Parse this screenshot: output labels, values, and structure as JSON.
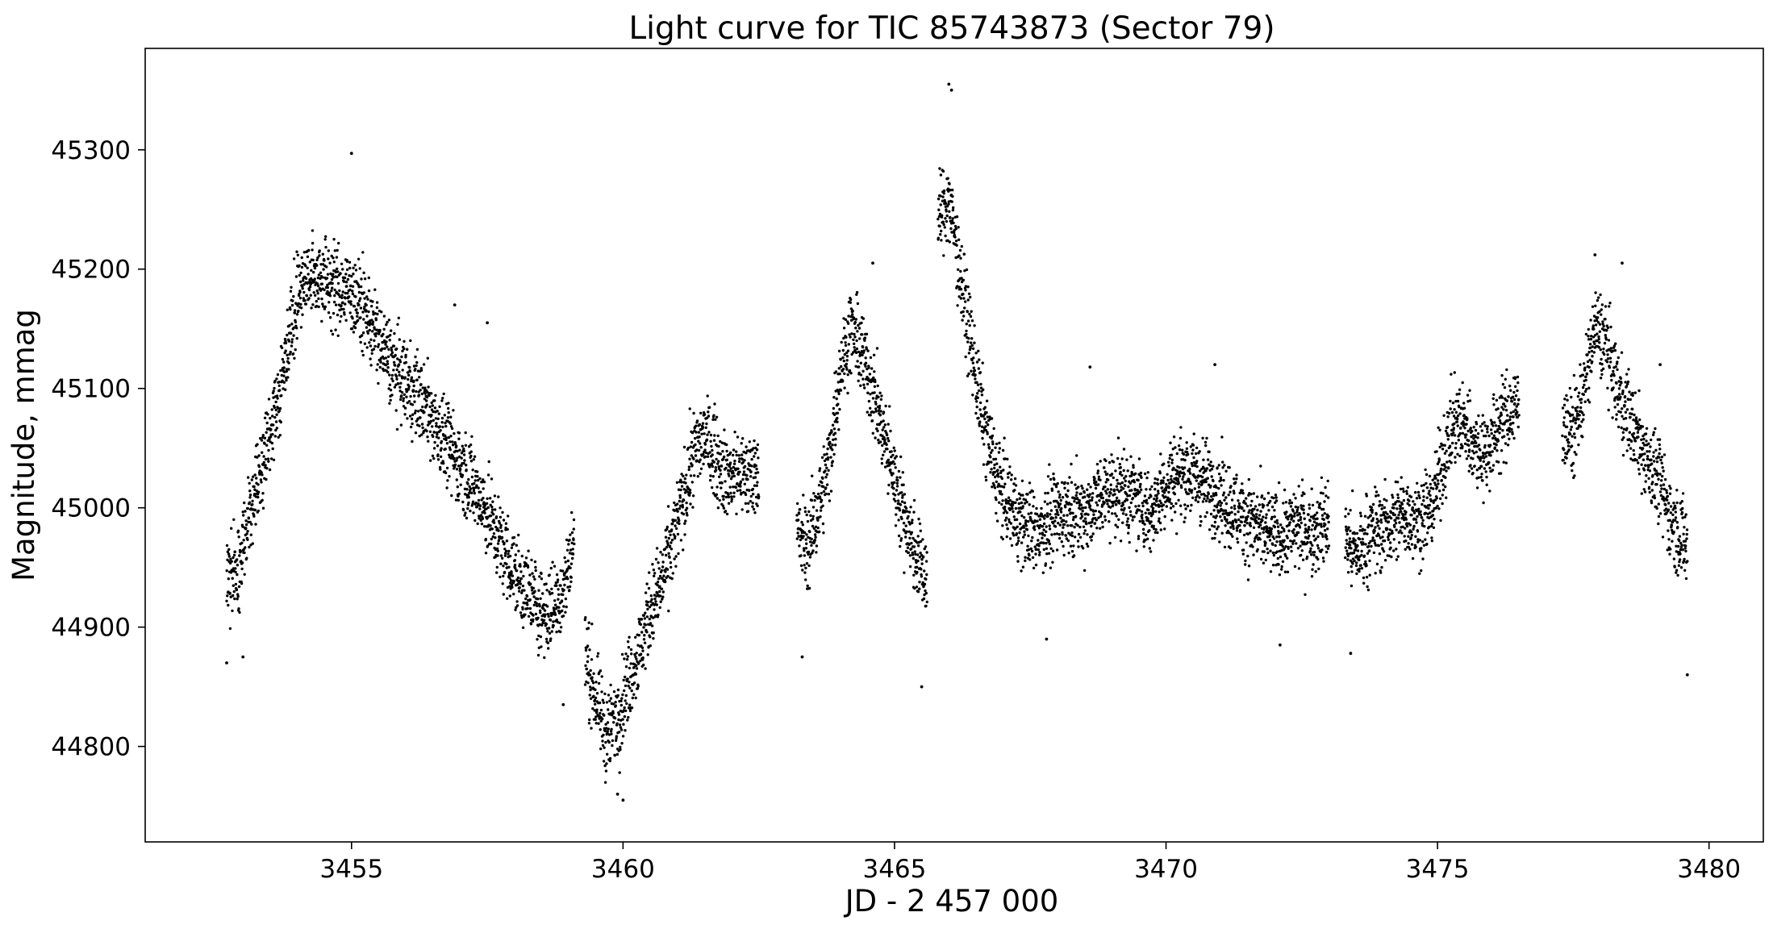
{
  "chart_data": {
    "type": "scatter",
    "title": "Light curve for TIC 85743873 (Sector 79)",
    "xlabel": "JD - 2 457 000",
    "ylabel": "Magnitude, mmag",
    "xlim": [
      3451.2,
      3481.0
    ],
    "ylim": [
      44720,
      45385
    ],
    "xticks": [
      3455,
      3460,
      3465,
      3470,
      3475,
      3480
    ],
    "yticks": [
      44800,
      44900,
      45000,
      45100,
      45200,
      45300
    ],
    "grid": false,
    "legend": "none",
    "marker_color": "#000000",
    "segments": [
      {
        "x": [
          3452.7,
          3452.9,
          3453.1,
          3453.3,
          3453.5,
          3453.7,
          3453.9,
          3454.1,
          3454.4,
          3454.7,
          3455.0,
          3455.3,
          3455.6,
          3455.9,
          3456.2,
          3456.5,
          3456.8,
          3457.1,
          3457.4,
          3457.7,
          3458.0,
          3458.3,
          3458.6,
          3458.9,
          3459.1
        ],
        "y": [
          44945,
          44940,
          44990,
          45030,
          45065,
          45100,
          45160,
          45190,
          45195,
          45185,
          45180,
          45160,
          45130,
          45110,
          45095,
          45075,
          45050,
          45030,
          45005,
          44975,
          44945,
          44925,
          44910,
          44930,
          44975
        ]
      },
      {
        "x": [
          3459.3,
          3459.5,
          3459.7,
          3459.9,
          3460.1,
          3460.3,
          3460.5,
          3460.7,
          3460.9,
          3461.1,
          3461.3,
          3461.5,
          3461.7,
          3461.9,
          3462.1,
          3462.3,
          3462.5
        ],
        "y": [
          44880,
          44840,
          44810,
          44825,
          44855,
          44880,
          44915,
          44935,
          44970,
          45005,
          45045,
          45060,
          45045,
          45025,
          45030,
          45025,
          45035
        ]
      },
      {
        "x": [
          3463.2,
          3463.4,
          3463.6,
          3463.8,
          3464.0,
          3464.2,
          3464.4,
          3464.6,
          3464.8,
          3465.0,
          3465.2,
          3465.4,
          3465.6
        ],
        "y": [
          44980,
          44965,
          45000,
          45040,
          45115,
          45150,
          45130,
          45100,
          45060,
          45025,
          44990,
          44960,
          44940
        ]
      },
      {
        "x": [
          3465.8,
          3466.0,
          3466.2,
          3466.4,
          3466.6,
          3466.8,
          3467.0,
          3467.3,
          3467.6,
          3467.9,
          3468.2,
          3468.5,
          3468.8,
          3469.1,
          3469.4,
          3469.7,
          3470.0,
          3470.3,
          3470.6,
          3470.9,
          3471.2,
          3471.5,
          3471.8,
          3472.1,
          3472.4,
          3472.7,
          3473.0
        ],
        "y": [
          45240,
          45260,
          45200,
          45140,
          45080,
          45040,
          45010,
          44990,
          44980,
          44990,
          45000,
          44995,
          45010,
          45015,
          45010,
          44995,
          45020,
          45030,
          45025,
          45015,
          45000,
          44990,
          44980,
          44975,
          44985,
          44980,
          44990
        ]
      },
      {
        "x": [
          3473.3,
          3473.5,
          3473.8,
          3474.1,
          3474.4,
          3474.7,
          3474.9,
          3475.1,
          3475.3,
          3475.5,
          3475.7,
          3475.9,
          3476.1,
          3476.3,
          3476.5
        ],
        "y": [
          44975,
          44960,
          44980,
          44985,
          44995,
          44990,
          45000,
          45040,
          45070,
          45070,
          45050,
          45045,
          45065,
          45080,
          45085
        ]
      },
      {
        "x": [
          3477.3,
          3477.5,
          3477.7,
          3477.9,
          3478.1,
          3478.3,
          3478.5,
          3478.7,
          3478.9,
          3479.1,
          3479.3,
          3479.5,
          3479.6
        ],
        "y": [
          45070,
          45060,
          45100,
          45150,
          45140,
          45100,
          45080,
          45055,
          45040,
          45020,
          44990,
          44975,
          44965
        ]
      }
    ],
    "outliers": {
      "x": [
        3452.7,
        3453.0,
        3455.0,
        3456.9,
        3457.5,
        3458.9,
        3459.9,
        3460.0,
        3463.3,
        3464.6,
        3465.5,
        3466.0,
        3466.05,
        3467.8,
        3468.6,
        3470.9,
        3472.1,
        3473.4,
        3477.9,
        3478.4,
        3479.1,
        3479.6
      ],
      "y": [
        44870,
        44875,
        45297,
        45170,
        45155,
        44835,
        44760,
        44755,
        44875,
        45205,
        44850,
        45355,
        45350,
        44890,
        45118,
        45120,
        44885,
        44878,
        45212,
        45205,
        45120,
        44860
      ]
    }
  }
}
